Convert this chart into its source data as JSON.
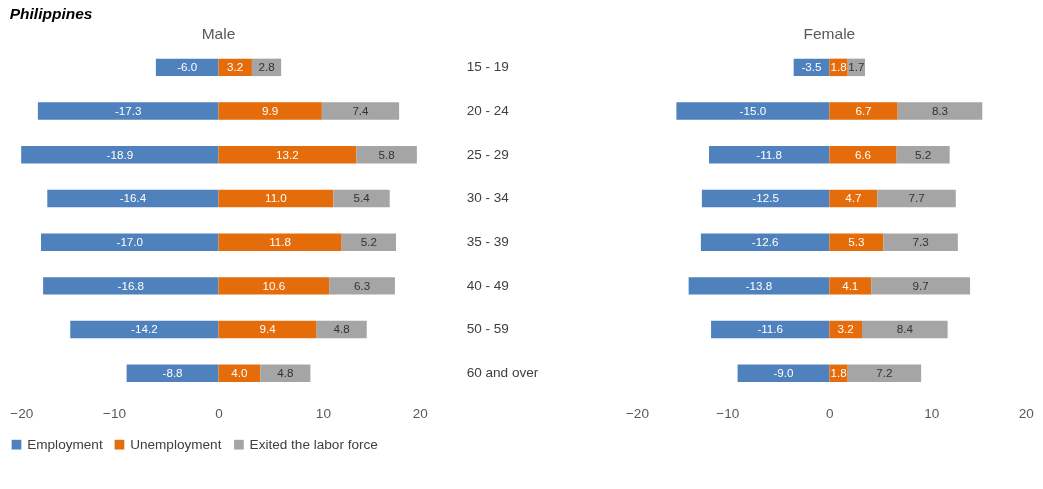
{
  "chart_data": [
    {
      "type": "bar",
      "orientation": "horizontal",
      "stacked": true,
      "title": "Male",
      "annotations": [
        "Philippines"
      ],
      "categories": [
        "15 - 19",
        "20 - 24",
        "25 - 29",
        "30 - 34",
        "35 - 39",
        "40 - 49",
        "50 - 59",
        "60 and over"
      ],
      "series": [
        {
          "name": "Employment",
          "color": "#4f81bd",
          "values": [
            -6.0,
            -17.3,
            -18.9,
            -16.4,
            -17.0,
            -16.8,
            -14.2,
            -8.8
          ],
          "value_labels": [
            "-6.0",
            "-17.3",
            "-18.9",
            "-16.4",
            "-17.0",
            "-16.8",
            "-14.2",
            "-8.8"
          ]
        },
        {
          "name": "Unemployment",
          "color": "#e46c0a",
          "values": [
            3.2,
            9.9,
            13.2,
            11.0,
            11.8,
            10.6,
            9.4,
            4.0
          ],
          "value_labels": [
            "3.2",
            "9.9",
            "13.2",
            "11.0",
            "11.8",
            "10.6",
            "9.4",
            "4.0"
          ]
        },
        {
          "name": "Exited the labor force",
          "color": "#a5a5a5",
          "values": [
            2.8,
            7.4,
            5.8,
            5.4,
            5.2,
            6.3,
            4.8,
            4.8
          ],
          "value_labels": [
            "2.8",
            "7.4",
            "5.8",
            "5.4",
            "5.2",
            "6.3",
            "4.8",
            "4.8"
          ]
        }
      ],
      "xlim": [
        -20,
        20
      ],
      "xticks": [
        -20,
        -10,
        0,
        10,
        20
      ],
      "grid": false,
      "legend": "bottom"
    },
    {
      "type": "bar",
      "orientation": "horizontal",
      "stacked": true,
      "title": "Female",
      "categories": [
        "15 - 19",
        "20 - 24",
        "25 - 29",
        "30 - 34",
        "35 - 39",
        "40 - 49",
        "50 - 59",
        "60 and over"
      ],
      "series": [
        {
          "name": "Employment",
          "color": "#4f81bd",
          "values": [
            -3.5,
            -15.0,
            -11.8,
            -12.5,
            -12.6,
            -13.8,
            -11.6,
            -9.0
          ],
          "value_labels": [
            "-3.5",
            "-15.0",
            "-11.8",
            "-12.5",
            "-12.6",
            "-13.8",
            "-11.6",
            "-9.0"
          ]
        },
        {
          "name": "Unemployment",
          "color": "#e46c0a",
          "values": [
            1.8,
            6.7,
            6.6,
            4.7,
            5.3,
            4.1,
            3.2,
            1.8
          ],
          "value_labels": [
            "1.8",
            "6.7",
            "6.6",
            "4.7",
            "5.3",
            "4.1",
            "3.2",
            "1.8"
          ]
        },
        {
          "name": "Exited the labor force",
          "color": "#a5a5a5",
          "values": [
            1.7,
            8.3,
            5.2,
            7.7,
            7.3,
            9.7,
            8.4,
            7.2
          ],
          "value_labels": [
            "1.7",
            "8.3",
            "5.2",
            "7.7",
            "7.3",
            "9.7",
            "8.4",
            "7.2"
          ]
        }
      ],
      "xlim": [
        -20,
        20
      ],
      "xticks": [
        -20,
        -10,
        0,
        10,
        20
      ],
      "grid": false,
      "tick_labels": "x"
    }
  ]
}
